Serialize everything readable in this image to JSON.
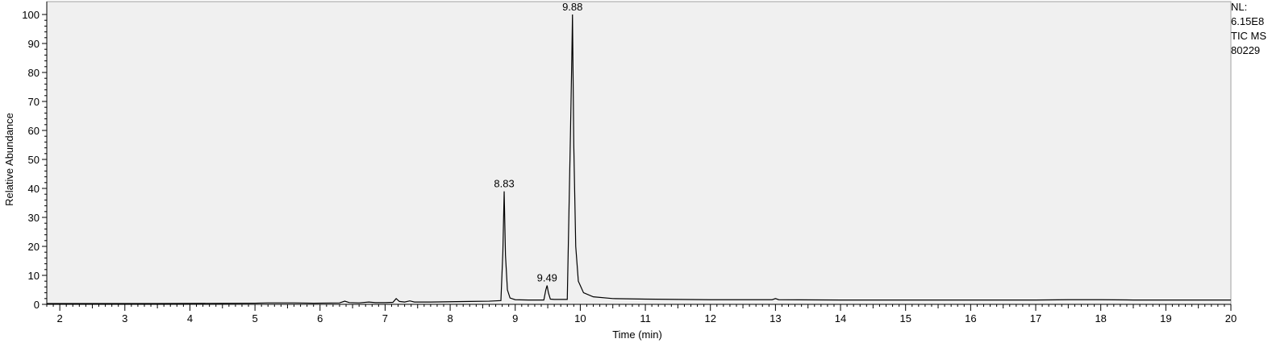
{
  "chart_data": {
    "type": "line",
    "xlabel": "Time (min)",
    "ylabel": "Relative Abundance",
    "xlim": [
      1.8,
      20
    ],
    "ylim": [
      0,
      100
    ],
    "x_ticks": [
      2,
      3,
      4,
      5,
      6,
      7,
      8,
      9,
      10,
      11,
      12,
      13,
      14,
      15,
      16,
      17,
      18,
      19,
      20
    ],
    "y_ticks": [
      0,
      10,
      20,
      30,
      40,
      50,
      60,
      70,
      80,
      90,
      100
    ],
    "series": [
      {
        "color": "#000000",
        "points": [
          [
            1.8,
            0.3
          ],
          [
            2.5,
            0.3
          ],
          [
            3.5,
            0.3
          ],
          [
            4.5,
            0.35
          ],
          [
            5.0,
            0.4
          ],
          [
            5.2,
            0.5
          ],
          [
            5.6,
            0.5
          ],
          [
            5.9,
            0.4
          ],
          [
            6.3,
            0.5
          ],
          [
            6.38,
            1.1
          ],
          [
            6.45,
            0.6
          ],
          [
            6.6,
            0.5
          ],
          [
            6.75,
            0.8
          ],
          [
            6.85,
            0.6
          ],
          [
            7.0,
            0.6
          ],
          [
            7.12,
            0.7
          ],
          [
            7.17,
            2.0
          ],
          [
            7.22,
            1.0
          ],
          [
            7.3,
            0.8
          ],
          [
            7.38,
            1.2
          ],
          [
            7.45,
            0.8
          ],
          [
            7.7,
            0.8
          ],
          [
            8.0,
            0.9
          ],
          [
            8.3,
            1.0
          ],
          [
            8.6,
            1.1
          ],
          [
            8.78,
            1.3
          ],
          [
            8.81,
            18.0
          ],
          [
            8.83,
            39.0
          ],
          [
            8.85,
            17.0
          ],
          [
            8.88,
            5.0
          ],
          [
            8.92,
            2.2
          ],
          [
            9.0,
            1.6
          ],
          [
            9.2,
            1.5
          ],
          [
            9.44,
            1.5
          ],
          [
            9.47,
            5.0
          ],
          [
            9.49,
            6.5
          ],
          [
            9.51,
            4.0
          ],
          [
            9.54,
            1.8
          ],
          [
            9.6,
            1.7
          ],
          [
            9.8,
            1.7
          ],
          [
            9.85,
            60.0
          ],
          [
            9.87,
            85.0
          ],
          [
            9.88,
            100.0
          ],
          [
            9.9,
            55.0
          ],
          [
            9.93,
            20.0
          ],
          [
            9.97,
            8.0
          ],
          [
            10.05,
            4.0
          ],
          [
            10.2,
            2.6
          ],
          [
            10.5,
            2.0
          ],
          [
            11.0,
            1.8
          ],
          [
            12.0,
            1.6
          ],
          [
            12.95,
            1.6
          ],
          [
            13.0,
            2.0
          ],
          [
            13.05,
            1.6
          ],
          [
            14.0,
            1.5
          ],
          [
            15.0,
            1.5
          ],
          [
            16.0,
            1.5
          ],
          [
            17.0,
            1.5
          ],
          [
            17.5,
            1.6
          ],
          [
            18.0,
            1.6
          ],
          [
            18.5,
            1.5
          ],
          [
            19.0,
            1.5
          ],
          [
            20.0,
            1.5
          ]
        ]
      }
    ],
    "annotations": [
      {
        "text": "8.83",
        "x": 8.83,
        "y": 39.0
      },
      {
        "text": "9.49",
        "x": 9.49,
        "y": 6.5
      },
      {
        "text": "9.88",
        "x": 9.88,
        "y": 100.0
      }
    ]
  },
  "side_info": {
    "line1": "NL:",
    "line2": "6.15E8",
    "line3": "TIC  MS",
    "line4": "80229"
  }
}
